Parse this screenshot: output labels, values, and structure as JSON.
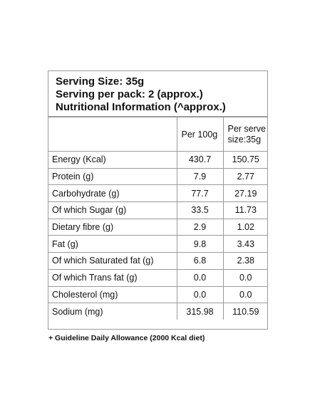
{
  "header": {
    "serving_size": "Serving Size: 35g",
    "serving_per_pack": "Serving per pack: 2 (approx.)",
    "info_title": "Nutritional Information (^approx.)"
  },
  "columns": {
    "nutrient": "",
    "per_100g": "Per 100g",
    "per_serve_line1": "Per serve",
    "per_serve_line2": "size:35g"
  },
  "rows": [
    {
      "name": "Energy (Kcal)",
      "per_100g": "430.7",
      "per_serve": "150.75"
    },
    {
      "name": "Protein (g)",
      "per_100g": "7.9",
      "per_serve": "2.77"
    },
    {
      "name": "Carbohydrate (g)",
      "per_100g": "77.7",
      "per_serve": "27.19"
    },
    {
      "name": "Of which Sugar (g)",
      "per_100g": "33.5",
      "per_serve": "11.73"
    },
    {
      "name": "Dietary fibre (g)",
      "per_100g": "2.9",
      "per_serve": "1.02"
    },
    {
      "name": "Fat (g)",
      "per_100g": "9.8",
      "per_serve": "3.43"
    },
    {
      "name": "Of which Saturated fat (g)",
      "per_100g": "6.8",
      "per_serve": "2.38"
    },
    {
      "name": "Of which Trans fat (g)",
      "per_100g": "0.0",
      "per_serve": "0.0"
    },
    {
      "name": "Cholesterol (mg)",
      "per_100g": "0.0",
      "per_serve": "0.0"
    },
    {
      "name": "Sodium (mg)",
      "per_100g": "315.98",
      "per_serve": "110.59"
    }
  ],
  "footnote": "+ Guideline Daily Allowance (2000 Kcal diet)"
}
